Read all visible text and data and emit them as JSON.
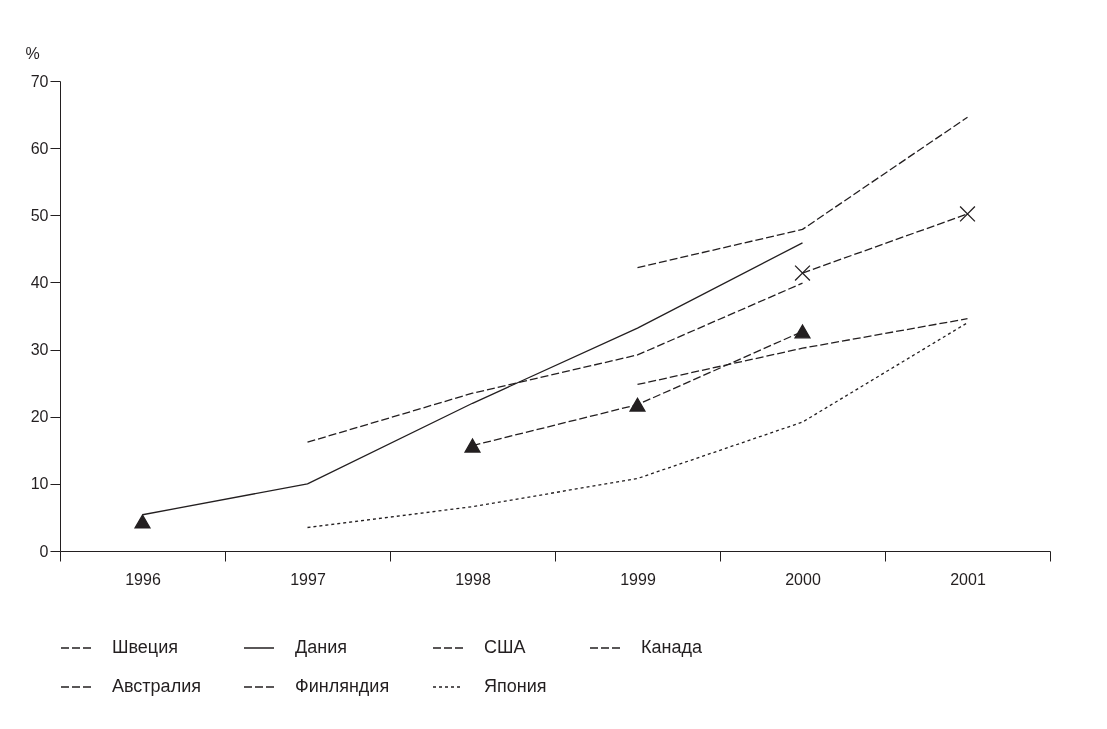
{
  "chart_data": {
    "type": "line",
    "ylabel": "%",
    "categories": [
      "1996",
      "1997",
      "1998",
      "1999",
      "2000",
      "2001"
    ],
    "ylim": [
      0,
      70
    ],
    "yticks": [
      0,
      10,
      20,
      30,
      40,
      50,
      60,
      70
    ],
    "grid": false,
    "legend": "bottom",
    "series": [
      {
        "name": "Швеция",
        "color": "#231f20",
        "line_style": "dashed",
        "marker": "none",
        "values": [
          null,
          null,
          null,
          42.2,
          47.9,
          64.6
        ]
      },
      {
        "name": "Дания",
        "color": "#231f20",
        "line_style": "solid",
        "marker": "none",
        "values": [
          5.4,
          10.0,
          22.0,
          33.2,
          45.9,
          null
        ]
      },
      {
        "name": "США",
        "color": "#231f20",
        "line_style": "dashed",
        "marker": "cross",
        "values": [
          null,
          null,
          null,
          null,
          41.4,
          50.2
        ]
      },
      {
        "name": "Канада",
        "color": "#231f20",
        "line_style": "dashed",
        "marker": "none",
        "values": [
          null,
          null,
          null,
          24.8,
          30.2,
          34.6
        ]
      },
      {
        "name": "Австралия",
        "color": "#231f20",
        "line_style": "dashed",
        "marker": "triangle",
        "values": [
          4.4,
          null,
          15.7,
          21.8,
          32.7,
          null
        ]
      },
      {
        "name": "Финляндия",
        "color": "#231f20",
        "line_style": "dashed",
        "marker": "none",
        "values": [
          null,
          16.2,
          23.5,
          29.2,
          39.9,
          null
        ]
      },
      {
        "name": "Япония",
        "color": "#231f20",
        "line_style": "dotted",
        "marker": "none",
        "values": [
          null,
          3.5,
          6.6,
          10.8,
          19.2,
          34.0
        ]
      }
    ]
  }
}
